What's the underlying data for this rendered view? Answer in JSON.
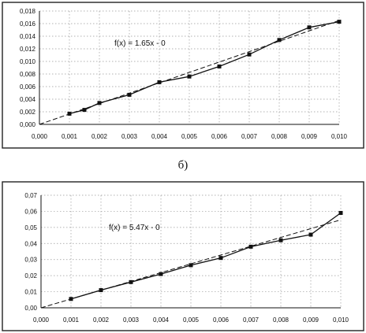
{
  "caption": "б)",
  "chart_data": [
    {
      "type": "line",
      "title": "",
      "xlabel": "",
      "ylabel": "",
      "xlim": [
        0.0,
        0.01
      ],
      "ylim": [
        0.0,
        0.018
      ],
      "x_ticks": [
        "0,000",
        "0,001",
        "0,002",
        "0,003",
        "0,004",
        "0,005",
        "0,006",
        "0,007",
        "0,008",
        "0,009",
        "0,010"
      ],
      "y_ticks": [
        "0,000",
        "0,002",
        "0,004",
        "0,006",
        "0,008",
        "0,010",
        "0,012",
        "0,014",
        "0,016",
        "0,018"
      ],
      "grid": true,
      "series": [
        {
          "marker": "square",
          "x": [
            0.001,
            0.0015,
            0.002,
            0.003,
            0.004,
            0.005,
            0.006,
            0.007,
            0.008,
            0.009,
            0.01
          ],
          "y": [
            0.0017,
            0.0023,
            0.0034,
            0.0047,
            0.0067,
            0.0076,
            0.0092,
            0.0111,
            0.0134,
            0.0154,
            0.0163
          ]
        }
      ],
      "trendline": {
        "label": "f(x) = 1.65x - 0",
        "slope": 1.65,
        "intercept": 0,
        "style": "dashed"
      }
    },
    {
      "type": "line",
      "title": "",
      "xlabel": "",
      "ylabel": "",
      "xlim": [
        0.0,
        0.01
      ],
      "ylim": [
        0.0,
        0.07
      ],
      "x_ticks": [
        "0,000",
        "0,001",
        "0,002",
        "0,003",
        "0,004",
        "0,005",
        "0,006",
        "0,007",
        "0,008",
        "0,009",
        "0,010"
      ],
      "y_ticks": [
        "0,00",
        "0,01",
        "0,02",
        "0,03",
        "0,04",
        "0,05",
        "0,06",
        "0,07"
      ],
      "grid": true,
      "series": [
        {
          "marker": "square",
          "x": [
            0.001,
            0.002,
            0.003,
            0.004,
            0.005,
            0.006,
            0.007,
            0.008,
            0.009,
            0.01
          ],
          "y": [
            0.0055,
            0.011,
            0.016,
            0.021,
            0.0265,
            0.031,
            0.038,
            0.042,
            0.0455,
            0.059
          ]
        }
      ],
      "trendline": {
        "label": "f(x) = 5.47x - 0",
        "slope": 5.47,
        "intercept": 0,
        "style": "dashed"
      }
    }
  ]
}
